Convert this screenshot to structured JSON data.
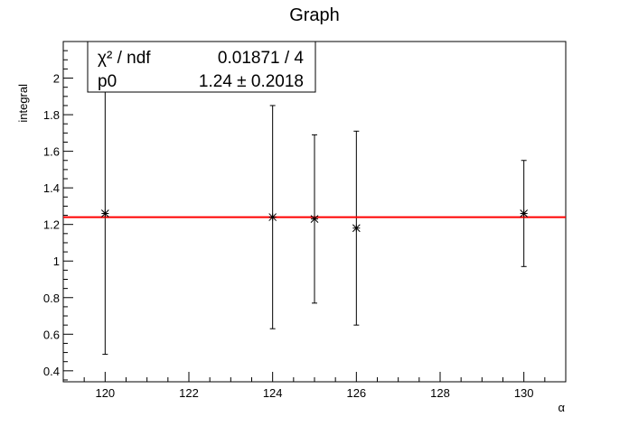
{
  "chart_data": {
    "type": "scatter",
    "title": "Graph",
    "xlabel": "α",
    "ylabel": "integral",
    "xlim": [
      119.0,
      131.0
    ],
    "ylim": [
      0.34,
      2.2
    ],
    "xticks": [
      120,
      122,
      124,
      126,
      128,
      130
    ],
    "yticks": [
      0.4,
      0.6,
      0.8,
      1,
      1.2,
      1.4,
      1.6,
      1.8,
      2
    ],
    "points": [
      {
        "x": 120,
        "y": 1.26,
        "ylo": 0.49,
        "yhi": 2.2
      },
      {
        "x": 124,
        "y": 1.24,
        "ylo": 0.63,
        "yhi": 1.85
      },
      {
        "x": 125,
        "y": 1.23,
        "ylo": 0.77,
        "yhi": 1.69
      },
      {
        "x": 126,
        "y": 1.18,
        "ylo": 0.65,
        "yhi": 1.71
      },
      {
        "x": 130,
        "y": 1.26,
        "ylo": 0.97,
        "yhi": 1.55
      }
    ],
    "fit": {
      "value": 1.24,
      "color": "#ff0000"
    },
    "marker_color": "#000000",
    "grid": false,
    "stats": {
      "row1_label": "χ² / ndf",
      "row1_value": "0.01871 / 4",
      "row2_label": "p0",
      "row2_value": "1.24 ± 0.2018"
    }
  }
}
